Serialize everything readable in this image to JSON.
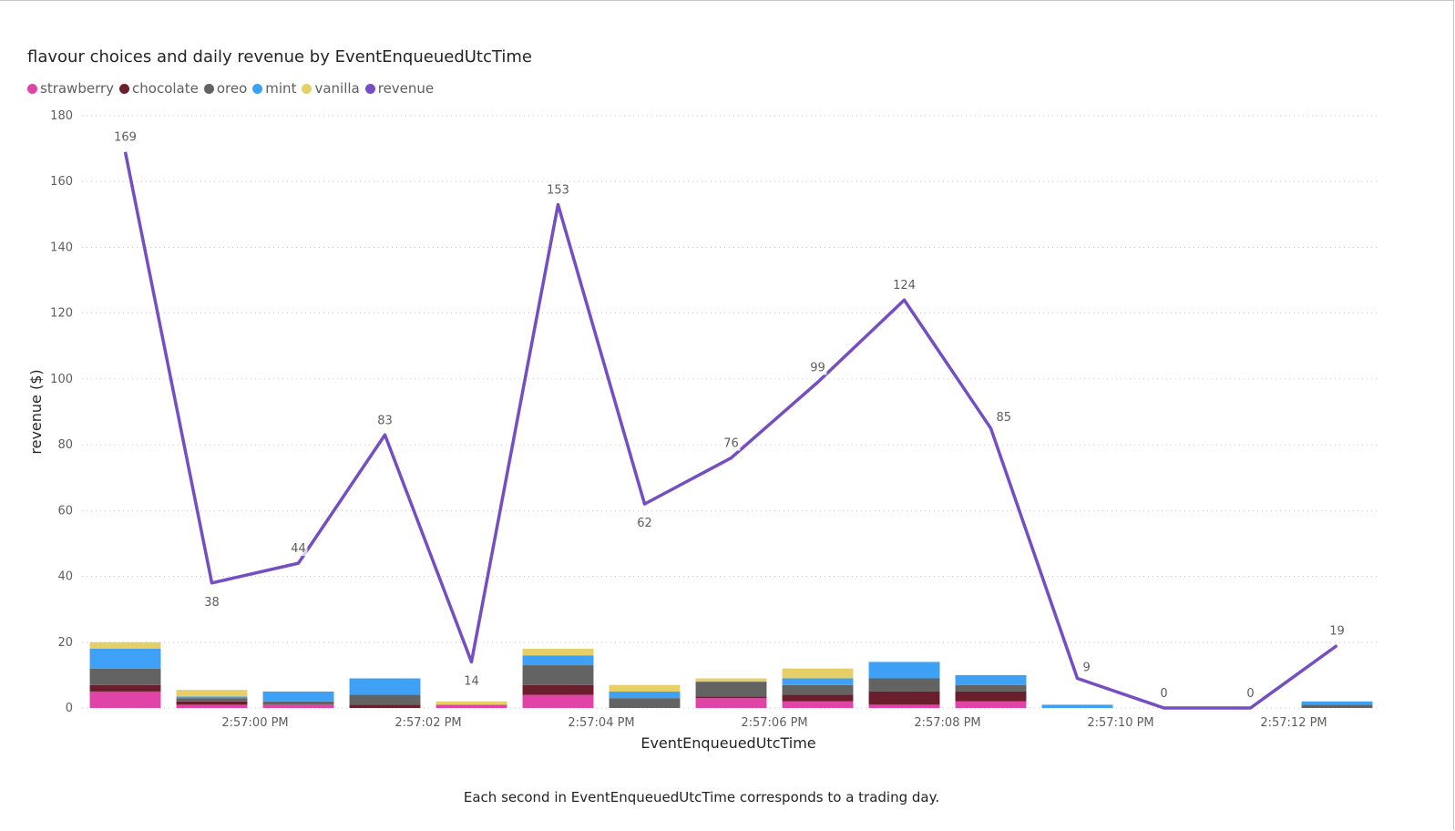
{
  "title": "flavour choices and daily revenue by EventEnqueuedUtcTime",
  "footnote": "Each second in EventEnqueuedUtcTime corresponds to a trading day.",
  "legend": [
    {
      "label": "strawberry",
      "color": "#E044A7"
    },
    {
      "label": "chocolate",
      "color": "#6B1E2C"
    },
    {
      "label": "oreo",
      "color": "#636363"
    },
    {
      "label": "mint",
      "color": "#3FA1F5"
    },
    {
      "label": "vanilla",
      "color": "#E5CF66"
    },
    {
      "label": "revenue",
      "color": "#744EC2"
    }
  ],
  "chart_data": {
    "type": "bar",
    "title": "flavour choices and daily revenue by EventEnqueuedUtcTime",
    "xlabel": "EventEnqueuedUtcTime",
    "ylabel": "revenue ($)",
    "ylim": [
      0,
      180
    ],
    "yticks": [
      0,
      20,
      40,
      60,
      80,
      100,
      120,
      140,
      160,
      180
    ],
    "grid": true,
    "legend_position": "top-left",
    "x_tick_labels": [
      "2:57:00 PM",
      "2:57:02 PM",
      "2:57:04 PM",
      "2:57:06 PM",
      "2:57:08 PM",
      "2:57:10 PM",
      "2:57:12 PM"
    ],
    "x_tick_positions": [
      1.5,
      3.5,
      5.5,
      7.5,
      9.5,
      11.5,
      13.5
    ],
    "n_categories": 15,
    "bar_series": [
      {
        "name": "strawberry",
        "color": "#E044A7",
        "values": [
          5,
          1,
          1,
          0,
          1,
          4,
          0,
          3,
          2,
          1,
          2,
          0,
          0,
          0,
          0
        ]
      },
      {
        "name": "chocolate",
        "color": "#6B1E2C",
        "values": [
          2,
          1,
          0,
          1,
          0,
          3,
          0,
          0.5,
          2,
          4,
          3,
          0,
          0,
          0,
          0
        ]
      },
      {
        "name": "oreo",
        "color": "#636363",
        "values": [
          5,
          1,
          1,
          3,
          0,
          6,
          3,
          4.5,
          3,
          4,
          2,
          0,
          0,
          0,
          1
        ]
      },
      {
        "name": "mint",
        "color": "#3FA1F5",
        "values": [
          6,
          0.5,
          3,
          5,
          0,
          3,
          2,
          0,
          2,
          5,
          3,
          1,
          0,
          0,
          1
        ]
      },
      {
        "name": "vanilla",
        "color": "#E5CF66",
        "values": [
          2,
          2,
          0,
          0,
          1,
          2,
          2,
          1,
          3,
          0,
          0,
          0,
          0,
          0,
          0
        ]
      }
    ],
    "line_series": {
      "name": "revenue",
      "color": "#744EC2",
      "values": [
        169,
        38,
        44,
        83,
        14,
        153,
        62,
        76,
        99,
        124,
        85,
        9,
        0,
        0,
        19
      ],
      "data_labels": [
        "169",
        "38",
        "44",
        "83",
        "14",
        "153",
        "62",
        "76",
        "99",
        "124",
        "85",
        "9",
        "0",
        "0",
        "19"
      ],
      "label_position": [
        "above",
        "below",
        "above",
        "above",
        "below",
        "above",
        "below",
        "above",
        "above",
        "above",
        "right",
        "right",
        "above",
        "above",
        "above"
      ]
    }
  }
}
